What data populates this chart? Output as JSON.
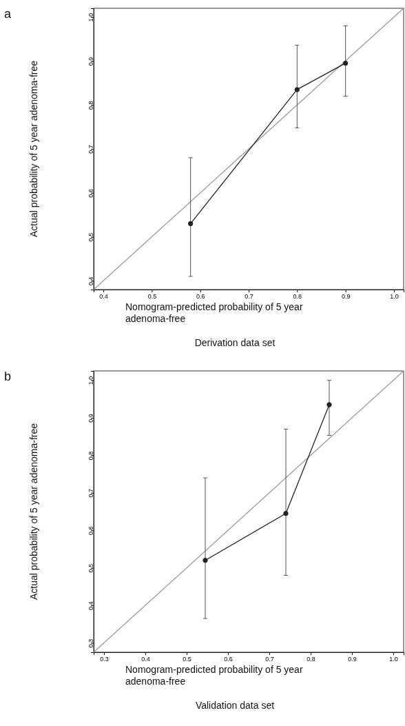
{
  "chart_data": [
    {
      "type": "line",
      "title": "Derivation data set",
      "xlabel": "Nomogram-predicted probability of 5 year adenoma-free",
      "ylabel": "Actual probability of 5 year adenoma-free",
      "annotations": [
        "a"
      ],
      "xlim": [
        0.38,
        1.02
      ],
      "ylim": [
        0.38,
        1.02
      ],
      "xticks": [
        0.4,
        0.5,
        0.6,
        0.7,
        0.8,
        0.9,
        {
          "value": 1,
          "label": "1.0"
        }
      ],
      "yticks": [
        0.4,
        0.5,
        0.6,
        0.7,
        0.8,
        0.9,
        {
          "value": 1,
          "label": "1.0"
        }
      ],
      "series": [
        {
          "color": "#9a9a9a",
          "x": [
            0.38,
            1.02
          ],
          "values": [
            0.38,
            1.02
          ],
          "marker": "none"
        },
        {
          "color": "#222222",
          "x": [
            0.58,
            0.8,
            0.9
          ],
          "values": [
            0.53,
            0.835,
            0.895
          ],
          "errors": [
            [
              0.41,
              0.68
            ],
            [
              0.748,
              0.936
            ],
            [
              0.82,
              0.98
            ]
          ],
          "marker": "circle"
        }
      ]
    },
    {
      "type": "line",
      "title": "Validation data set",
      "xlabel": "Nomogram-predicted probability of 5 year adenoma-free",
      "ylabel": "Actual probability of 5 year adenoma-free",
      "annotations": [
        "b"
      ],
      "xlim": [
        0.275,
        1.025
      ],
      "ylim": [
        0.275,
        1.025
      ],
      "xticks": [
        0.3,
        0.4,
        0.5,
        0.6,
        0.7,
        0.8,
        0.9,
        {
          "value": 1,
          "label": "1.0"
        }
      ],
      "yticks": [
        0.3,
        0.4,
        0.5,
        0.6,
        0.7,
        0.8,
        0.9,
        {
          "value": 1,
          "label": "1.0"
        }
      ],
      "series": [
        {
          "color": "#9a9a9a",
          "x": [
            0.275,
            1.025
          ],
          "values": [
            0.275,
            1.025
          ],
          "marker": "none"
        },
        {
          "color": "#222222",
          "x": [
            0.545,
            0.74,
            0.845
          ],
          "values": [
            0.52,
            0.645,
            0.935
          ],
          "errors": [
            [
              0.365,
              0.74
            ],
            [
              0.48,
              0.87
            ],
            [
              0.853,
              1.0
            ]
          ],
          "marker": "circle"
        }
      ]
    }
  ]
}
